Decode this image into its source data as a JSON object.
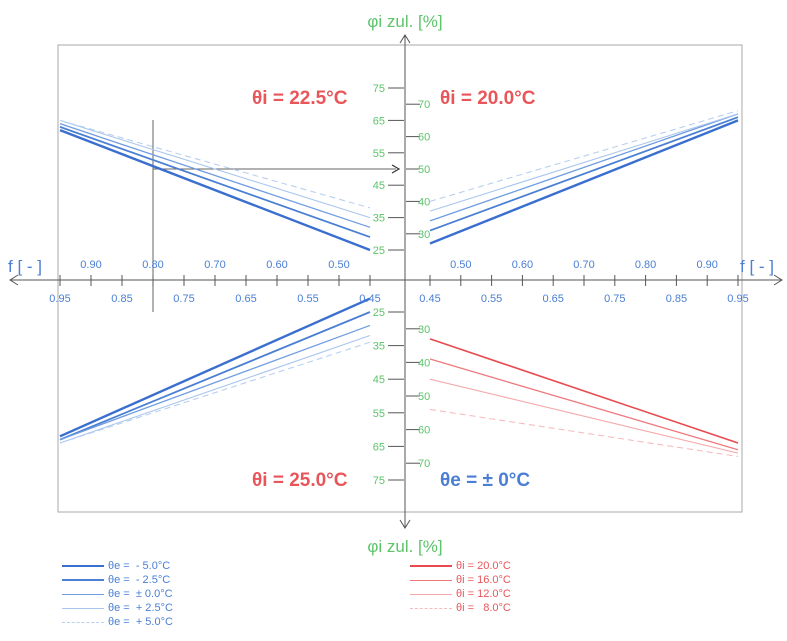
{
  "chart_data": {
    "type": "line",
    "y_axis_label_top": "φi zul. [%]",
    "y_axis_label_bottom": "φi zul. [%]",
    "x_axis_label_left": "f [ - ]",
    "x_axis_label_right": "f [ - ]",
    "colors": {
      "blue": "#4a7fd4",
      "green": "#5cc46a",
      "red": "#e8565a",
      "axis": "#555555",
      "frame": "#aaaaaa"
    },
    "x_ticks_upper_left": [
      "0.90",
      "0.80",
      "0.70",
      "0.60",
      "0.50"
    ],
    "x_ticks_lower_left": [
      "0.95",
      "0.85",
      "0.75",
      "0.65",
      "0.55",
      "0.45"
    ],
    "x_ticks_upper_right": [
      "0.50",
      "0.60",
      "0.70",
      "0.80",
      "0.90"
    ],
    "x_ticks_lower_right": [
      "0.45",
      "0.55",
      "0.65",
      "0.75",
      "0.85",
      "0.95"
    ],
    "y_ticks_q1": [
      "70",
      "60",
      "50",
      "40",
      "30"
    ],
    "y_ticks_q2": [
      "75",
      "65",
      "55",
      "45",
      "35",
      "25"
    ],
    "y_ticks_q3": [
      "25",
      "35",
      "45",
      "55",
      "65",
      "75"
    ],
    "y_ticks_q4": [
      "30",
      "40",
      "50",
      "60",
      "70"
    ],
    "quadrant_titles": {
      "top_left": "θi = 22.5°C",
      "top_right": "θi = 20.0°C",
      "bottom_left": "θi = 25.0°C",
      "bottom_right": "θe = ± 0°C"
    },
    "quadrants": {
      "top_left": {
        "series": [
          {
            "name": "θe = - 5.0°C",
            "x": [
              0.95,
              0.45
            ],
            "y": [
              62,
              25
            ]
          },
          {
            "name": "θe = - 2.5°C",
            "x": [
              0.95,
              0.45
            ],
            "y": [
              63,
              29
            ]
          },
          {
            "name": "θe = ± 0.0°C",
            "x": [
              0.95,
              0.45
            ],
            "y": [
              64,
              32
            ]
          },
          {
            "name": "θe = + 2.5°C",
            "x": [
              0.95,
              0.45
            ],
            "y": [
              65,
              35
            ]
          },
          {
            "name": "θe = + 5.0°C",
            "x": [
              0.95,
              0.45
            ],
            "y": [
              65,
              38
            ]
          }
        ]
      },
      "top_right": {
        "series": [
          {
            "name": "θe = - 5.0°C",
            "x": [
              0.45,
              0.95
            ],
            "y": [
              27,
              65
            ]
          },
          {
            "name": "θe = - 2.5°C",
            "x": [
              0.45,
              0.95
            ],
            "y": [
              31,
              66
            ]
          },
          {
            "name": "θe = ± 0.0°C",
            "x": [
              0.45,
              0.95
            ],
            "y": [
              34,
              67
            ]
          },
          {
            "name": "θe = + 2.5°C",
            "x": [
              0.45,
              0.95
            ],
            "y": [
              37,
              67
            ]
          },
          {
            "name": "θe = + 5.0°C",
            "x": [
              0.45,
              0.95
            ],
            "y": [
              40,
              68
            ]
          }
        ]
      },
      "bottom_left": {
        "series": [
          {
            "name": "θe = - 5.0°C",
            "x": [
              0.45,
              0.95
            ],
            "y": [
              21,
              62
            ]
          },
          {
            "name": "θe = - 2.5°C",
            "x": [
              0.45,
              0.95
            ],
            "y": [
              25,
              63
            ]
          },
          {
            "name": "θe = ± 0.0°C",
            "x": [
              0.45,
              0.95
            ],
            "y": [
              29,
              63
            ]
          },
          {
            "name": "θe = + 2.5°C",
            "x": [
              0.45,
              0.95
            ],
            "y": [
              32,
              64
            ]
          },
          {
            "name": "θe = + 5.0°C",
            "x": [
              0.45,
              0.95
            ],
            "y": [
              34,
              64
            ]
          }
        ]
      },
      "bottom_right": {
        "series": [
          {
            "name": "θi = 20.0°C",
            "x": [
              0.45,
              0.95
            ],
            "y": [
              33,
              64
            ]
          },
          {
            "name": "θi = 16.0°C",
            "x": [
              0.45,
              0.95
            ],
            "y": [
              39,
              66
            ]
          },
          {
            "name": "θi = 12.0°C",
            "x": [
              0.45,
              0.95
            ],
            "y": [
              45,
              67
            ]
          },
          {
            "name": "θi = 8.0°C",
            "x": [
              0.45,
              0.95
            ],
            "y": [
              54,
              68
            ]
          }
        ]
      }
    },
    "reading_example": {
      "f": 0.8,
      "phi": 50
    },
    "legend_left": [
      {
        "label": "θe =  - 5.0°C",
        "style": "solid",
        "weight": "heavy",
        "shade": "dark"
      },
      {
        "label": "θe =  - 2.5°C",
        "style": "solid",
        "weight": "medium",
        "shade": "dark"
      },
      {
        "label": "θe =  ± 0.0°C",
        "style": "solid",
        "weight": "thin",
        "shade": "mid"
      },
      {
        "label": "θe =  + 2.5°C",
        "style": "solid",
        "weight": "thin",
        "shade": "light"
      },
      {
        "label": "θe =  + 5.0°C",
        "style": "dashed",
        "weight": "thin",
        "shade": "light"
      }
    ],
    "legend_right": [
      {
        "label": "θi = 20.0°C",
        "style": "solid",
        "shade": "dark"
      },
      {
        "label": "θi = 16.0°C",
        "style": "solid",
        "shade": "mid"
      },
      {
        "label": "θi = 12.0°C",
        "style": "solid",
        "shade": "light"
      },
      {
        "label": "θi =   8.0°C",
        "style": "dashed",
        "shade": "light"
      }
    ]
  }
}
